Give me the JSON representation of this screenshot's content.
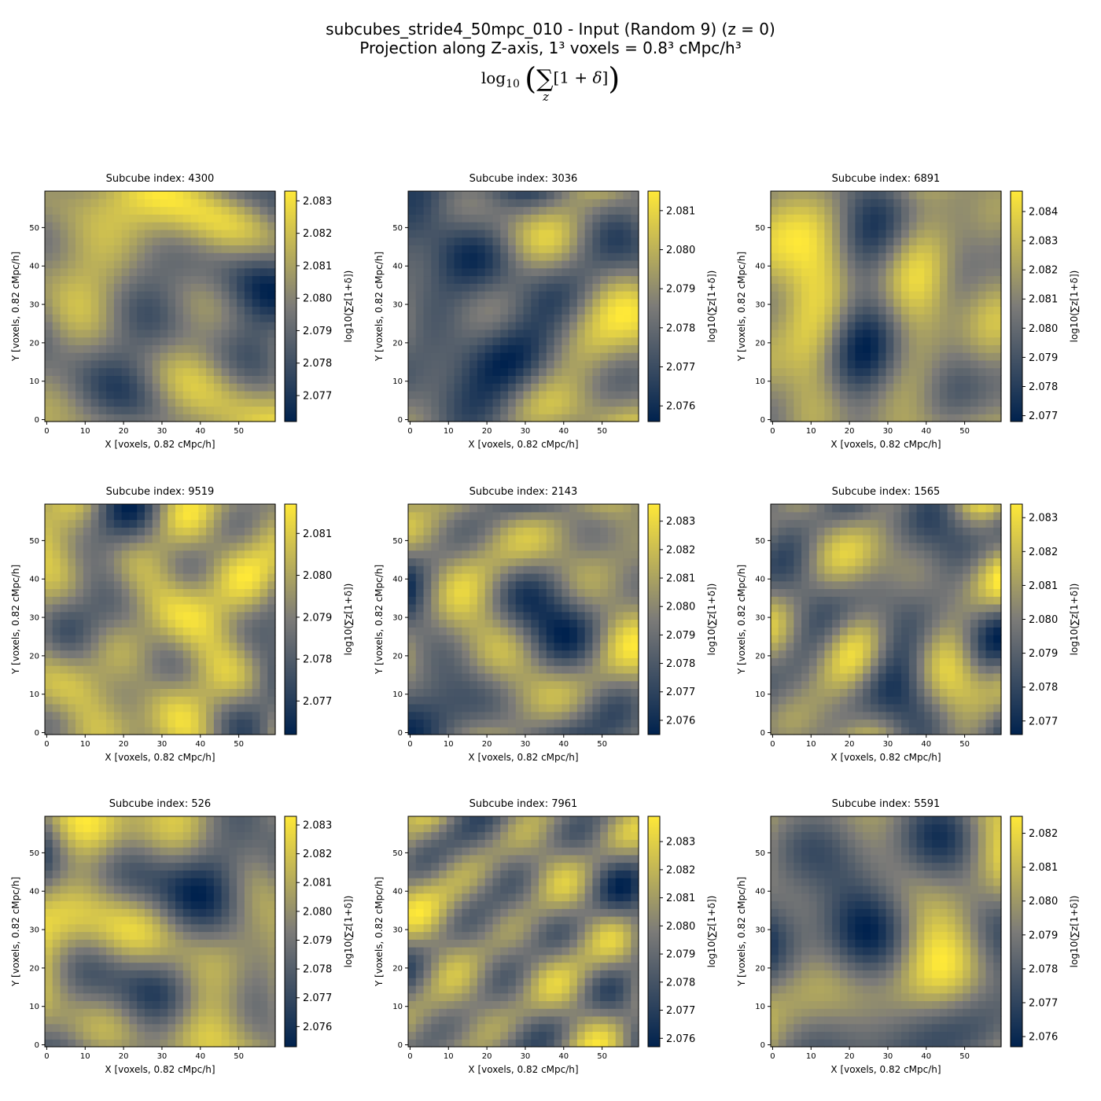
{
  "figure": {
    "title_line1": "subcubes_stride4_50mpc_010 - Input (Random 9) (z = 0)",
    "title_line2": "Projection along Z-axis, 1³ voxels = 0.8³ cMpc/h³",
    "title_line3": "log10(∑z[1+δ])"
  },
  "colormap": {
    "name": "cividis",
    "low": "#00224e",
    "mid": "#7c7b78",
    "high": "#fee838"
  },
  "chart_data": [
    {
      "type": "heatmap",
      "title": "Subcube index: 4300",
      "xlabel": "X [voxels, 0.82 cMpc/h]",
      "ylabel": "Y [voxels, 0.82 cMpc/h]",
      "xlim": [
        0,
        59
      ],
      "ylim": [
        0,
        59
      ],
      "x_ticks": [
        0,
        10,
        20,
        30,
        40,
        50
      ],
      "y_ticks": [
        0,
        10,
        20,
        30,
        40,
        50
      ],
      "colorbar_label": "log10(∑z[1+δ])",
      "colorbar_range": [
        2.0762,
        2.0833
      ],
      "colorbar_ticks": [
        2.077,
        2.078,
        2.079,
        2.08,
        2.081,
        2.082,
        2.083
      ]
    },
    {
      "type": "heatmap",
      "title": "Subcube index: 3036",
      "xlabel": "X [voxels, 0.82 cMpc/h]",
      "ylabel": "Y [voxels, 0.82 cMpc/h]",
      "xlim": [
        0,
        59
      ],
      "ylim": [
        0,
        59
      ],
      "x_ticks": [
        0,
        10,
        20,
        30,
        40,
        50
      ],
      "y_ticks": [
        0,
        10,
        20,
        30,
        40,
        50
      ],
      "colorbar_label": "log10(∑z[1+δ])",
      "colorbar_range": [
        2.0756,
        2.0815
      ],
      "colorbar_ticks": [
        2.076,
        2.077,
        2.078,
        2.079,
        2.08,
        2.081
      ]
    },
    {
      "type": "heatmap",
      "title": "Subcube index: 6891",
      "xlabel": "X [voxels, 0.82 cMpc/h]",
      "ylabel": "Y [voxels, 0.82 cMpc/h]",
      "xlim": [
        0,
        59
      ],
      "ylim": [
        0,
        59
      ],
      "x_ticks": [
        0,
        10,
        20,
        30,
        40,
        50
      ],
      "y_ticks": [
        0,
        10,
        20,
        30,
        40,
        50
      ],
      "colorbar_label": "log10(∑z[1+δ])",
      "colorbar_range": [
        2.0768,
        2.0847
      ],
      "colorbar_ticks": [
        2.077,
        2.078,
        2.079,
        2.08,
        2.081,
        2.082,
        2.083,
        2.084
      ]
    },
    {
      "type": "heatmap",
      "title": "Subcube index: 9519",
      "xlabel": "X [voxels, 0.82 cMpc/h]",
      "ylabel": "Y [voxels, 0.82 cMpc/h]",
      "xlim": [
        0,
        59
      ],
      "ylim": [
        0,
        59
      ],
      "x_ticks": [
        0,
        10,
        20,
        30,
        40,
        50
      ],
      "y_ticks": [
        0,
        10,
        20,
        30,
        40,
        50
      ],
      "colorbar_label": "log10(∑z[1+δ])",
      "colorbar_range": [
        2.0762,
        2.0817
      ],
      "colorbar_ticks": [
        2.077,
        2.078,
        2.079,
        2.08,
        2.081
      ]
    },
    {
      "type": "heatmap",
      "title": "Subcube index: 2143",
      "xlabel": "X [voxels, 0.82 cMpc/h]",
      "ylabel": "Y [voxels, 0.82 cMpc/h]",
      "xlim": [
        0,
        59
      ],
      "ylim": [
        0,
        59
      ],
      "x_ticks": [
        0,
        10,
        20,
        30,
        40,
        50
      ],
      "y_ticks": [
        0,
        10,
        20,
        30,
        40,
        50
      ],
      "colorbar_label": "log10(∑z[1+δ])",
      "colorbar_range": [
        2.0755,
        2.0836
      ],
      "colorbar_ticks": [
        2.076,
        2.077,
        2.078,
        2.079,
        2.08,
        2.081,
        2.082,
        2.083
      ]
    },
    {
      "type": "heatmap",
      "title": "Subcube index: 1565",
      "xlabel": "X [voxels, 0.82 cMpc/h]",
      "ylabel": "Y [voxels, 0.82 cMpc/h]",
      "xlim": [
        0,
        59
      ],
      "ylim": [
        0,
        59
      ],
      "x_ticks": [
        0,
        10,
        20,
        30,
        40,
        50
      ],
      "y_ticks": [
        0,
        10,
        20,
        30,
        40,
        50
      ],
      "colorbar_label": "log10(∑z[1+δ])",
      "colorbar_range": [
        2.0766,
        2.0834
      ],
      "colorbar_ticks": [
        2.077,
        2.078,
        2.079,
        2.08,
        2.081,
        2.082,
        2.083
      ]
    },
    {
      "type": "heatmap",
      "title": "Subcube index: 526",
      "xlabel": "X [voxels, 0.82 cMpc/h]",
      "ylabel": "Y [voxels, 0.82 cMpc/h]",
      "xlim": [
        0,
        59
      ],
      "ylim": [
        0,
        59
      ],
      "x_ticks": [
        0,
        10,
        20,
        30,
        40,
        50
      ],
      "y_ticks": [
        0,
        10,
        20,
        30,
        40,
        50
      ],
      "colorbar_label": "log10(∑z[1+δ])",
      "colorbar_range": [
        2.0753,
        2.0833
      ],
      "colorbar_ticks": [
        2.076,
        2.077,
        2.078,
        2.079,
        2.08,
        2.081,
        2.082,
        2.083
      ]
    },
    {
      "type": "heatmap",
      "title": "Subcube index: 7961",
      "xlabel": "X [voxels, 0.82 cMpc/h]",
      "ylabel": "Y [voxels, 0.82 cMpc/h]",
      "xlim": [
        0,
        59
      ],
      "ylim": [
        0,
        59
      ],
      "x_ticks": [
        0,
        10,
        20,
        30,
        40,
        50
      ],
      "y_ticks": [
        0,
        10,
        20,
        30,
        40,
        50
      ],
      "colorbar_label": "log10(∑z[1+δ])",
      "colorbar_range": [
        2.0757,
        2.0839
      ],
      "colorbar_ticks": [
        2.076,
        2.077,
        2.078,
        2.079,
        2.08,
        2.081,
        2.082,
        2.083
      ]
    },
    {
      "type": "heatmap",
      "title": "Subcube index: 5591",
      "xlabel": "X [voxels, 0.82 cMpc/h]",
      "ylabel": "Y [voxels, 0.82 cMpc/h]",
      "xlim": [
        0,
        59
      ],
      "ylim": [
        0,
        59
      ],
      "x_ticks": [
        0,
        10,
        20,
        30,
        40,
        50
      ],
      "y_ticks": [
        0,
        10,
        20,
        30,
        40,
        50
      ],
      "colorbar_label": "log10(∑z[1+δ])",
      "colorbar_range": [
        2.0757,
        2.0825
      ],
      "colorbar_ticks": [
        2.076,
        2.077,
        2.078,
        2.079,
        2.08,
        2.081,
        2.082
      ]
    }
  ]
}
